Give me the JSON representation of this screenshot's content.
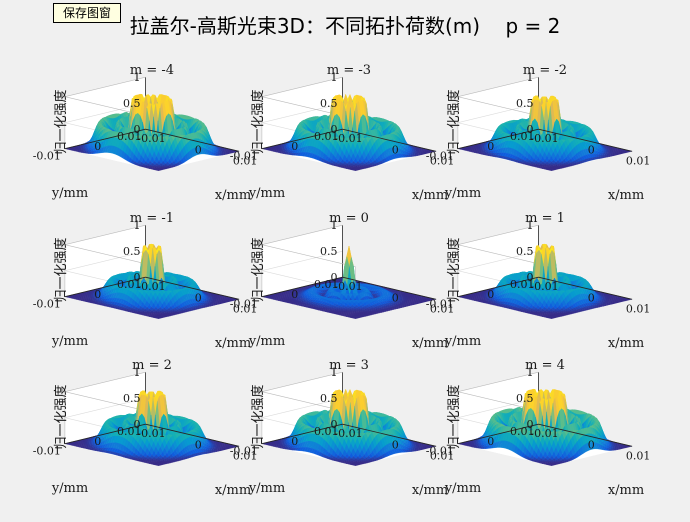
{
  "toolbar": {
    "save_label": "保存图窗"
  },
  "figure": {
    "title": "拉盖尔-高斯光束3D：不同拓扑荷数(m)    p = 2"
  },
  "colors": {
    "background": "#f0f0f0",
    "colormap": "parula",
    "axis": "#262626"
  },
  "chart_data": [
    {
      "type": "surface",
      "title": "m = -4",
      "m": -4,
      "p": 2,
      "xlabel": "x/mm",
      "ylabel": "y/mm",
      "zlabel": "归一化强度",
      "x_ticks": [
        "-0.01",
        "0",
        "0.01"
      ],
      "y_ticks": [
        "-0.01",
        "0",
        "0.01"
      ],
      "z_ticks": [
        "0",
        "0.5",
        "1"
      ],
      "zlim": [
        0,
        1
      ]
    },
    {
      "type": "surface",
      "title": "m = -3",
      "m": -3,
      "p": 2,
      "xlabel": "x/mm",
      "ylabel": "y/mm",
      "zlabel": "归一化强度",
      "x_ticks": [
        "-0.01",
        "0",
        "0.01"
      ],
      "y_ticks": [
        "-0.01",
        "0",
        "0.01"
      ],
      "z_ticks": [
        "0",
        "0.5",
        "1"
      ],
      "zlim": [
        0,
        1
      ]
    },
    {
      "type": "surface",
      "title": "m = -2",
      "m": -2,
      "p": 2,
      "xlabel": "x/mm",
      "ylabel": "y/mm",
      "zlabel": "归一化强度",
      "x_ticks": [
        "-0.01",
        "0",
        "0.01"
      ],
      "y_ticks": [
        "-0.01",
        "0",
        "0.01"
      ],
      "z_ticks": [
        "0",
        "0.5",
        "1"
      ],
      "zlim": [
        0,
        1
      ]
    },
    {
      "type": "surface",
      "title": "m = -1",
      "m": -1,
      "p": 2,
      "xlabel": "x/mm",
      "ylabel": "y/mm",
      "zlabel": "归一化强度",
      "x_ticks": [
        "-0.01",
        "0",
        "0.01"
      ],
      "y_ticks": [
        "-0.01",
        "0",
        "0.01"
      ],
      "z_ticks": [
        "0",
        "0.5",
        "1"
      ],
      "zlim": [
        0,
        1
      ]
    },
    {
      "type": "surface",
      "title": "m = 0",
      "m": 0,
      "p": 2,
      "xlabel": "x/mm",
      "ylabel": "y/mm",
      "zlabel": "归一化强度",
      "x_ticks": [
        "-0.01",
        "0",
        "0.01"
      ],
      "y_ticks": [
        "-0.01",
        "0",
        "0.01"
      ],
      "z_ticks": [
        "0",
        "0.5",
        "1"
      ],
      "zlim": [
        0,
        1
      ]
    },
    {
      "type": "surface",
      "title": "m = 1",
      "m": 1,
      "p": 2,
      "xlabel": "x/mm",
      "ylabel": "y/mm",
      "zlabel": "归一化强度",
      "x_ticks": [
        "-0.01",
        "0",
        "0.01"
      ],
      "y_ticks": [
        "-0.01",
        "0",
        "0.01"
      ],
      "z_ticks": [
        "0",
        "0.5",
        "1"
      ],
      "zlim": [
        0,
        1
      ]
    },
    {
      "type": "surface",
      "title": "m = 2",
      "m": 2,
      "p": 2,
      "xlabel": "x/mm",
      "ylabel": "y/mm",
      "zlabel": "归一化强度",
      "x_ticks": [
        "-0.01",
        "0",
        "0.01"
      ],
      "y_ticks": [
        "-0.01",
        "0",
        "0.01"
      ],
      "z_ticks": [
        "0",
        "0.5",
        "1"
      ],
      "zlim": [
        0,
        1
      ]
    },
    {
      "type": "surface",
      "title": "m = 3",
      "m": 3,
      "p": 2,
      "xlabel": "x/mm",
      "ylabel": "y/mm",
      "zlabel": "归一化强度",
      "x_ticks": [
        "-0.01",
        "0",
        "0.01"
      ],
      "y_ticks": [
        "-0.01",
        "0",
        "0.01"
      ],
      "z_ticks": [
        "0",
        "0.5",
        "1"
      ],
      "zlim": [
        0,
        1
      ]
    },
    {
      "type": "surface",
      "title": "m = 4",
      "m": 4,
      "p": 2,
      "xlabel": "x/mm",
      "ylabel": "y/mm",
      "zlabel": "归一化强度",
      "x_ticks": [
        "-0.01",
        "0",
        "0.01"
      ],
      "y_ticks": [
        "-0.01",
        "0",
        "0.01"
      ],
      "z_ticks": [
        "0",
        "0.5",
        "1"
      ],
      "zlim": [
        0,
        1
      ]
    }
  ]
}
